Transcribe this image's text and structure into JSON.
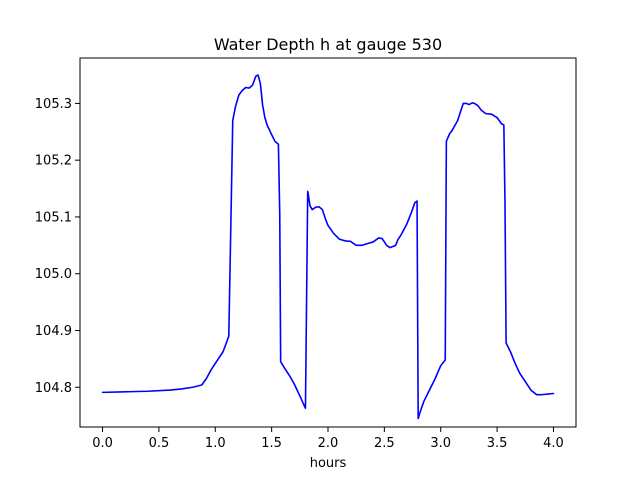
{
  "chart_data": {
    "type": "line",
    "title": "Water Depth h at gauge 530",
    "xlabel": "hours",
    "ylabel": "",
    "xlim": [
      -0.2,
      4.2
    ],
    "ylim": [
      104.73,
      105.38
    ],
    "xticks": [
      0.0,
      0.5,
      1.0,
      1.5,
      2.0,
      2.5,
      3.0,
      3.5,
      4.0
    ],
    "xtick_labels": [
      "0.0",
      "0.5",
      "1.0",
      "1.5",
      "2.0",
      "2.5",
      "3.0",
      "3.5",
      "4.0"
    ],
    "yticks": [
      104.8,
      104.9,
      105.0,
      105.1,
      105.2,
      105.3
    ],
    "ytick_labels": [
      "104.8",
      "104.9",
      "105.0",
      "105.1",
      "105.2",
      "105.3"
    ],
    "grid": false,
    "series": [
      {
        "color": "#0000ff",
        "x": [
          0.0,
          0.2,
          0.4,
          0.6,
          0.7,
          0.8,
          0.88,
          0.92,
          0.97,
          1.02,
          1.07,
          1.12,
          1.155,
          1.16,
          1.18,
          1.21,
          1.24,
          1.27,
          1.3,
          1.33,
          1.36,
          1.38,
          1.4,
          1.42,
          1.44,
          1.46,
          1.5,
          1.53,
          1.56,
          1.572,
          1.58,
          1.62,
          1.66,
          1.7,
          1.75,
          1.8,
          1.82,
          1.825,
          1.84,
          1.86,
          1.89,
          1.92,
          1.95,
          1.98,
          2.0,
          2.05,
          2.1,
          2.15,
          2.2,
          2.25,
          2.3,
          2.35,
          2.4,
          2.45,
          2.48,
          2.52,
          2.55,
          2.6,
          2.62,
          2.65,
          2.7,
          2.74,
          2.77,
          2.79,
          2.8,
          2.82,
          2.85,
          2.9,
          2.95,
          3.0,
          3.04,
          3.05,
          3.06,
          3.08,
          3.1,
          3.15,
          3.2,
          3.23,
          3.25,
          3.28,
          3.3,
          3.33,
          3.36,
          3.4,
          3.45,
          3.5,
          3.54,
          3.56,
          3.57,
          3.58,
          3.62,
          3.66,
          3.7,
          3.75,
          3.8,
          3.85,
          3.9,
          3.95,
          4.0
        ],
        "values": [
          104.791,
          104.792,
          104.793,
          104.795,
          104.797,
          104.8,
          104.804,
          104.815,
          104.833,
          104.848,
          104.863,
          104.89,
          105.27,
          105.275,
          105.295,
          105.315,
          105.323,
          105.328,
          105.327,
          105.332,
          105.348,
          105.35,
          105.335,
          105.297,
          105.275,
          105.262,
          105.245,
          105.233,
          105.228,
          105.105,
          104.845,
          104.832,
          104.82,
          104.806,
          104.785,
          104.763,
          105.145,
          105.14,
          105.12,
          105.113,
          105.117,
          105.118,
          105.113,
          105.095,
          105.085,
          105.071,
          105.061,
          105.058,
          105.057,
          105.05,
          105.05,
          105.053,
          105.056,
          105.063,
          105.062,
          105.05,
          105.046,
          105.05,
          105.06,
          105.069,
          105.088,
          105.108,
          105.125,
          105.128,
          104.745,
          104.758,
          104.775,
          104.795,
          104.815,
          104.838,
          104.848,
          105.233,
          105.238,
          105.247,
          105.252,
          105.27,
          105.3,
          105.3,
          105.298,
          105.301,
          105.3,
          105.296,
          105.288,
          105.282,
          105.281,
          105.275,
          105.264,
          105.262,
          105.125,
          104.878,
          104.862,
          104.842,
          104.825,
          104.81,
          104.795,
          104.787,
          104.787,
          104.788,
          104.789
        ]
      }
    ]
  }
}
